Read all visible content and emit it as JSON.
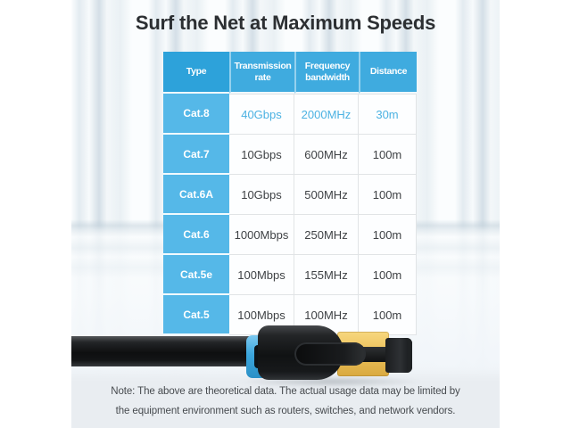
{
  "title": "Surf the Net at Maximum Speeds",
  "chart_data": {
    "type": "table",
    "title": "Surf the Net at Maximum Speeds",
    "columns": [
      "Type",
      "Transmission rate",
      "Frequency bandwidth",
      "Distance"
    ],
    "rows": [
      [
        "Cat.8",
        "40Gbps",
        "2000MHz",
        "30m"
      ],
      [
        "Cat.7",
        "10Gbps",
        "600MHz",
        "100m"
      ],
      [
        "Cat.6A",
        "10Gbps",
        "500MHz",
        "100m"
      ],
      [
        "Cat.6",
        "1000Mbps",
        "250MHz",
        "100m"
      ],
      [
        "Cat.5e",
        "100Mbps",
        "155MHz",
        "100m"
      ],
      [
        "Cat.5",
        "100Mbps",
        "100MHz",
        "100m"
      ]
    ],
    "highlighted_row": "Cat.8",
    "legend_position": "none",
    "grid": true
  },
  "note": {
    "line1": "Note: The above are theoretical data. The actual usage data may be limited by",
    "line2": "the equipment environment such as routers, switches, and network vendors."
  },
  "colors": {
    "title_text": "#2c2f32",
    "header_type_bg": "#2da2da",
    "header_bg": "#3fabdf",
    "row_label_bg": "#55b8e8",
    "highlight_text": "#4cb2e2",
    "body_text": "#3f4245",
    "table_border": "#e1e4e6",
    "note_text": "#474b4f",
    "footer_bg": "#e9edf1",
    "cable_blue": "#3ba6dd",
    "cable_gold": "#eec45f",
    "cable_black": "#141618"
  }
}
